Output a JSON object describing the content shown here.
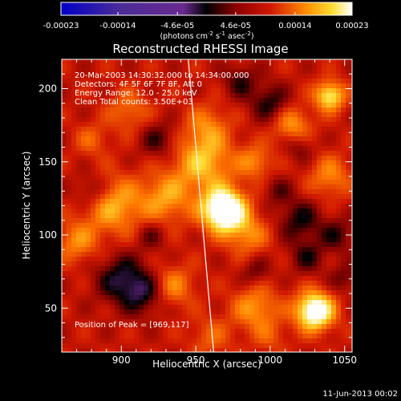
{
  "figure": {
    "title": "Reconstructed RHESSI Image",
    "xlabel": "Heliocentric X (arcsec)",
    "ylabel": "Heliocentric Y (arcsec)",
    "footer_date": "11-Jun-2013 00:02"
  },
  "colorbar": {
    "ticks": [
      "-0.00023",
      "-0.00014",
      "-4.6e-05",
      "4.6e-05",
      "0.00014",
      "0.00023"
    ],
    "tick_values": [
      -0.00023,
      -0.00014,
      -4.6e-05,
      4.6e-05,
      0.00014,
      0.00023
    ],
    "unit_main": "(photons cm",
    "unit_exp1": "-2",
    "unit_mid": " s",
    "unit_exp2": "-1",
    "unit_mid2": " asec",
    "unit_exp3": "-2",
    "unit_end": ")",
    "range": [
      -0.00023,
      0.00023
    ],
    "colormap": [
      "#0000c8",
      "#4a2b96",
      "#7a2aa0",
      "#000000",
      "#7a0000",
      "#c81e00",
      "#ff6a00",
      "#ffc800",
      "#ffffff"
    ]
  },
  "annotations": {
    "line1": "20-Mar-2003 14:30:32.000 to 14:34:00.000",
    "line2": "Detectors: 4F 5F 6F 7F 8F, Att 0",
    "line3": "Energy Range: 12.0 - 25.0 keV",
    "line4": "Clean    Total counts: 3.50E+03",
    "peak": "Position of Peak = [969,117]"
  },
  "chart_data": {
    "type": "heatmap",
    "title": "Reconstructed RHESSI Image",
    "xlabel": "Heliocentric X (arcsec)",
    "ylabel": "Heliocentric Y (arcsec)",
    "xlim": [
      860,
      1055
    ],
    "ylim": [
      20,
      220
    ],
    "xticks": [
      900,
      950,
      1000,
      1050
    ],
    "yticks": [
      50,
      100,
      150,
      200
    ],
    "xtick_labels": [
      "900",
      "950",
      "1000",
      "1050"
    ],
    "ytick_labels": [
      "50",
      "100",
      "150",
      "200"
    ],
    "peak_position": [
      969,
      117
    ],
    "value_range": [
      -0.00023,
      0.00023
    ],
    "limb_line": {
      "x": [
        945,
        962
      ],
      "y": [
        220,
        20
      ]
    },
    "sources": [
      {
        "x": 969,
        "y": 117,
        "level": 1.0,
        "sigma": 10
      },
      {
        "x": 955,
        "y": 150,
        "level": 0.45,
        "sigma": 14
      },
      {
        "x": 958,
        "y": 175,
        "level": 0.25,
        "sigma": 10
      },
      {
        "x": 930,
        "y": 125,
        "level": 0.35,
        "sigma": 12
      },
      {
        "x": 895,
        "y": 120,
        "level": 0.4,
        "sigma": 14
      },
      {
        "x": 870,
        "y": 95,
        "level": 0.3,
        "sigma": 10
      },
      {
        "x": 1030,
        "y": 48,
        "level": 0.85,
        "sigma": 9
      },
      {
        "x": 990,
        "y": 50,
        "level": 0.35,
        "sigma": 11
      },
      {
        "x": 1040,
        "y": 195,
        "level": 0.6,
        "sigma": 7
      },
      {
        "x": 1015,
        "y": 175,
        "level": 0.35,
        "sigma": 9
      },
      {
        "x": 1040,
        "y": 140,
        "level": 0.3,
        "sigma": 10
      },
      {
        "x": 990,
        "y": 150,
        "level": 0.3,
        "sigma": 8
      },
      {
        "x": 985,
        "y": 100,
        "level": 0.3,
        "sigma": 10
      },
      {
        "x": 935,
        "y": 65,
        "level": 0.3,
        "sigma": 10
      },
      {
        "x": 905,
        "y": 185,
        "level": 0.25,
        "sigma": 10
      },
      {
        "x": 960,
        "y": 30,
        "level": 0.2,
        "sigma": 10
      },
      {
        "x": 1000,
        "y": 30,
        "level": 0.15,
        "sigma": 8
      },
      {
        "x": 880,
        "y": 165,
        "level": 0.2,
        "sigma": 8
      },
      {
        "x": 900,
        "y": 70,
        "level": -0.35,
        "sigma": 12
      },
      {
        "x": 915,
        "y": 60,
        "level": -0.3,
        "sigma": 10
      },
      {
        "x": 880,
        "y": 130,
        "level": -0.25,
        "sigma": 8
      },
      {
        "x": 1020,
        "y": 110,
        "level": -0.3,
        "sigma": 10
      },
      {
        "x": 1045,
        "y": 100,
        "level": -0.25,
        "sigma": 8
      },
      {
        "x": 1025,
        "y": 85,
        "level": -0.25,
        "sigma": 8
      },
      {
        "x": 1000,
        "y": 190,
        "level": -0.3,
        "sigma": 9
      },
      {
        "x": 980,
        "y": 205,
        "level": -0.25,
        "sigma": 8
      },
      {
        "x": 1020,
        "y": 160,
        "level": -0.2,
        "sigma": 7
      },
      {
        "x": 925,
        "y": 165,
        "level": -0.25,
        "sigma": 9
      },
      {
        "x": 920,
        "y": 100,
        "level": -0.2,
        "sigma": 7
      },
      {
        "x": 1050,
        "y": 70,
        "level": -0.2,
        "sigma": 7
      },
      {
        "x": 990,
        "y": 75,
        "level": -0.2,
        "sigma": 7
      },
      {
        "x": 1005,
        "y": 130,
        "level": -0.18,
        "sigma": 7
      }
    ]
  }
}
